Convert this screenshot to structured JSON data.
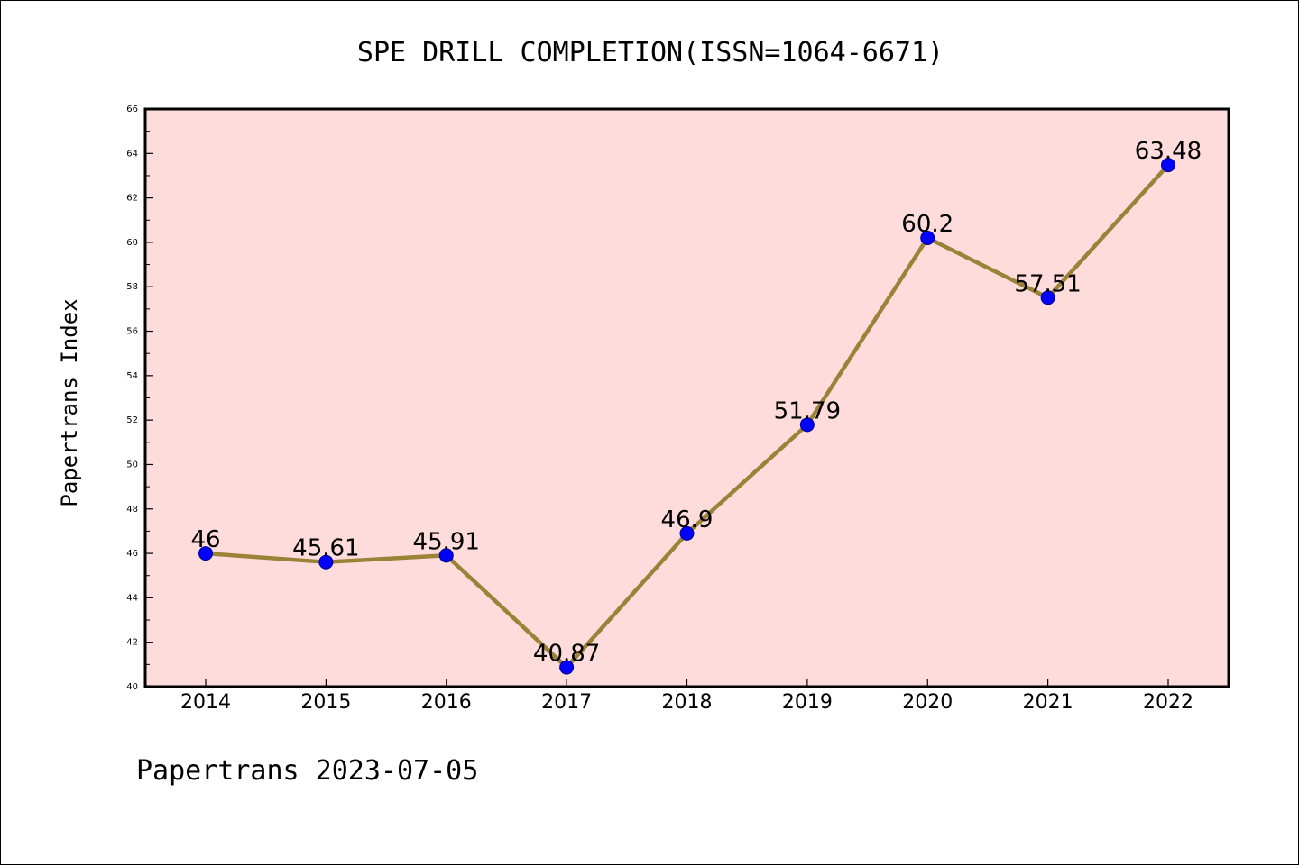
{
  "chart_data": {
    "type": "line",
    "title": "SPE DRILL COMPLETION(ISSN=1064-6671)",
    "ylabel": "Papertrans Index",
    "xlabel": "",
    "footer": "Papertrans 2023-07-05",
    "categories": [
      "2014",
      "2015",
      "2016",
      "2017",
      "2018",
      "2019",
      "2020",
      "2021",
      "2022"
    ],
    "series": [
      {
        "values": [
          46,
          45.61,
          45.91,
          40.87,
          46.9,
          51.79,
          60.2,
          57.51,
          63.48
        ],
        "labels": [
          "46",
          "45.61",
          "45.91",
          "40.87",
          "46.9",
          "51.79",
          "60.2",
          "57.51",
          "63.48"
        ]
      }
    ],
    "ylim": [
      40,
      66
    ],
    "yticks": [
      "40",
      "42",
      "44",
      "46",
      "48",
      "50",
      "52",
      "54",
      "56",
      "58",
      "60",
      "62",
      "64",
      "66"
    ],
    "grid": false,
    "legend": "none",
    "colors": {
      "plot_background": "#ffdcdc",
      "line": "#9a8238",
      "marker": "#0000ff",
      "axes": "#000000"
    }
  }
}
